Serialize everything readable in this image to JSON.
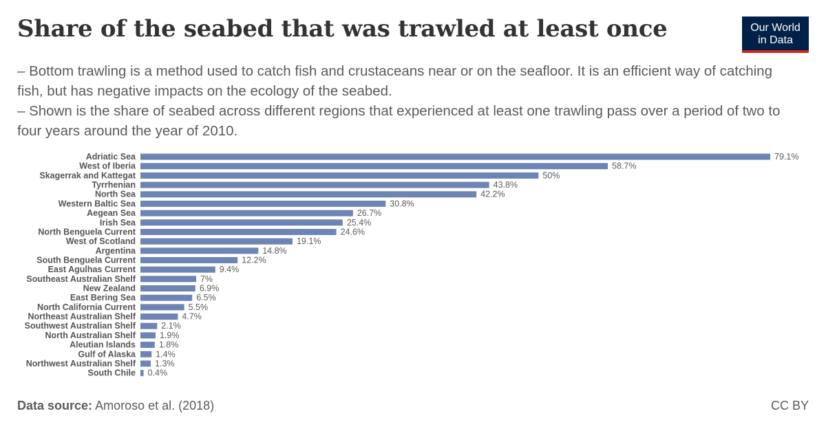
{
  "title": "Share of the seabed that was trawled at least once",
  "logo": {
    "line1": "Our World",
    "line2": "in Data"
  },
  "subtitle": {
    "line1": "– Bottom trawling is a method used to catch fish and crustaceans near or on the seafloor. It is an efficient way of catching fish, but has negative impacts on the ecology of the seabed.",
    "line2": "– Shown is the share of seabed across different regions that experienced at least one trawling pass over a period of two to four years around the year of 2010."
  },
  "footer": {
    "source_label": "Data source:",
    "source_text": "Amoroso et al. (2018)",
    "license": "CC BY"
  },
  "colors": {
    "bar": "#6d84b4",
    "label": "#555555",
    "value": "#5b5b5b"
  },
  "chart_data": {
    "type": "bar",
    "orientation": "horizontal",
    "unit": "%",
    "categories": [
      "Adriatic Sea",
      "West of Iberia",
      "Skagerrak and Kattegat",
      "Tyrrhenian",
      "North Sea",
      "Western Baltic Sea",
      "Aegean Sea",
      "Irish Sea",
      "North Benguela Current",
      "West of Scotland",
      "Argentina",
      "South Benguela Current",
      "East Agulhas Current",
      "Southeast Australian Shelf",
      "New Zealand",
      "East Bering Sea",
      "North California Current",
      "Northeast Australian Shelf",
      "Southwest Australian Shelf",
      "North Australian Shelf",
      "Aleutian Islands",
      "Gulf of Alaska",
      "Northwest Australian Shelf",
      "South Chile"
    ],
    "values": [
      79.1,
      58.7,
      50,
      43.8,
      42.2,
      30.8,
      26.7,
      25.4,
      24.6,
      19.1,
      14.8,
      12.2,
      9.4,
      7,
      6.9,
      6.5,
      5.5,
      4.7,
      2.1,
      1.9,
      1.8,
      1.4,
      1.3,
      0.4
    ],
    "value_labels": [
      "79.1%",
      "58.7%",
      "50%",
      "43.8%",
      "42.2%",
      "30.8%",
      "26.7%",
      "25.4%",
      "24.6%",
      "19.1%",
      "14.8%",
      "12.2%",
      "9.4%",
      "7%",
      "6.9%",
      "6.5%",
      "5.5%",
      "4.7%",
      "2.1%",
      "1.9%",
      "1.8%",
      "1.4%",
      "1.3%",
      "0.4%"
    ],
    "grid": false,
    "legend": "none"
  }
}
